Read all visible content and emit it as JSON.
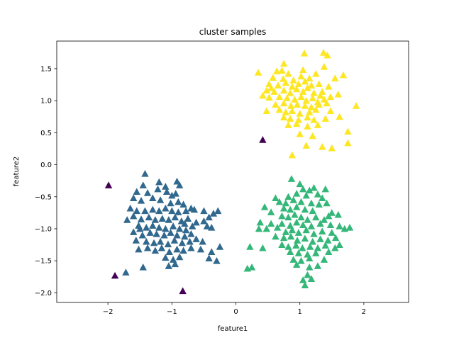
{
  "chart_data": {
    "type": "scatter",
    "title": "cluster samples",
    "xlabel": "feature1",
    "ylabel": "feature2",
    "xlim": [
      -2.8,
      2.7
    ],
    "ylim": [
      -2.15,
      1.93
    ],
    "xticks": [
      -2,
      -1,
      0,
      1,
      2
    ],
    "yticks": [
      -2.0,
      -1.5,
      -1.0,
      -0.5,
      0.0,
      0.5,
      1.0,
      1.5
    ],
    "xtick_labels": [
      "−2",
      "−1",
      "0",
      "1",
      "2"
    ],
    "ytick_labels": [
      "−2.0",
      "−1.5",
      "−1.0",
      "−0.5",
      "0.0",
      "0.5",
      "1.0",
      "1.5"
    ],
    "grid": false,
    "marker": "triangle-up",
    "series": [
      {
        "color": "#440154",
        "points": [
          [
            -1.99,
            -0.32
          ],
          [
            -1.89,
            -1.73
          ],
          [
            -0.83,
            -1.97
          ],
          [
            0.42,
            0.39
          ]
        ]
      },
      {
        "color": "#31688e",
        "points": [
          [
            -1.42,
            -0.14
          ],
          [
            -1.2,
            -0.27
          ],
          [
            -1.1,
            -0.34
          ],
          [
            -0.92,
            -0.26
          ],
          [
            -0.88,
            -0.32
          ],
          [
            -1.45,
            -0.32
          ],
          [
            -1.55,
            -0.42
          ],
          [
            -1.38,
            -0.44
          ],
          [
            -1.22,
            -0.38
          ],
          [
            -1.08,
            -0.42
          ],
          [
            -1.0,
            -0.48
          ],
          [
            -0.94,
            -0.45
          ],
          [
            -1.6,
            -0.52
          ],
          [
            -1.48,
            -0.56
          ],
          [
            -1.3,
            -0.52
          ],
          [
            -1.18,
            -0.55
          ],
          [
            -1.02,
            -0.6
          ],
          [
            -0.9,
            -0.58
          ],
          [
            -0.82,
            -0.62
          ],
          [
            -0.7,
            -0.68
          ],
          [
            -1.65,
            -0.68
          ],
          [
            -1.55,
            -0.72
          ],
          [
            -1.42,
            -0.72
          ],
          [
            -1.3,
            -0.7
          ],
          [
            -1.2,
            -0.72
          ],
          [
            -1.1,
            -0.68
          ],
          [
            -1.0,
            -0.72
          ],
          [
            -0.9,
            -0.74
          ],
          [
            -0.78,
            -0.72
          ],
          [
            -0.65,
            -0.7
          ],
          [
            -0.5,
            -0.72
          ],
          [
            -0.42,
            -0.82
          ],
          [
            -0.35,
            -0.76
          ],
          [
            -0.28,
            -0.72
          ],
          [
            -1.7,
            -0.86
          ],
          [
            -1.6,
            -0.8
          ],
          [
            -1.48,
            -0.85
          ],
          [
            -1.36,
            -0.82
          ],
          [
            -1.26,
            -0.86
          ],
          [
            -1.15,
            -0.84
          ],
          [
            -1.05,
            -0.86
          ],
          [
            -0.95,
            -0.82
          ],
          [
            -0.85,
            -0.88
          ],
          [
            -0.75,
            -0.84
          ],
          [
            -0.62,
            -0.9
          ],
          [
            -0.5,
            -0.88
          ],
          [
            -1.52,
            -0.95
          ],
          [
            -1.4,
            -0.98
          ],
          [
            -1.3,
            -0.95
          ],
          [
            -1.2,
            -0.98
          ],
          [
            -1.1,
            -1.0
          ],
          [
            -0.98,
            -0.96
          ],
          [
            -0.88,
            -1.0
          ],
          [
            -0.78,
            -1.02
          ],
          [
            -0.68,
            -0.96
          ],
          [
            -0.45,
            -0.96
          ],
          [
            -0.38,
            -0.98
          ],
          [
            -1.6,
            -1.05
          ],
          [
            -1.46,
            -1.1
          ],
          [
            -1.34,
            -1.06
          ],
          [
            -1.24,
            -1.08
          ],
          [
            -1.12,
            -1.1
          ],
          [
            -1.02,
            -1.06
          ],
          [
            -0.92,
            -1.1
          ],
          [
            -0.8,
            -1.12
          ],
          [
            -0.7,
            -1.08
          ],
          [
            -1.56,
            -1.18
          ],
          [
            -1.4,
            -1.2
          ],
          [
            -1.28,
            -1.22
          ],
          [
            -1.18,
            -1.2
          ],
          [
            -1.06,
            -1.24
          ],
          [
            -0.96,
            -1.18
          ],
          [
            -0.84,
            -1.22
          ],
          [
            -0.72,
            -1.2
          ],
          [
            -0.62,
            -1.16
          ],
          [
            -0.52,
            -1.2
          ],
          [
            -1.52,
            -1.32
          ],
          [
            -1.38,
            -1.3
          ],
          [
            -1.26,
            -1.34
          ],
          [
            -1.16,
            -1.3
          ],
          [
            -1.04,
            -1.36
          ],
          [
            -0.92,
            -1.32
          ],
          [
            -0.82,
            -1.34
          ],
          [
            -0.7,
            -1.3
          ],
          [
            -0.55,
            -1.32
          ],
          [
            -0.25,
            -1.28
          ],
          [
            -0.38,
            -1.36
          ],
          [
            -1.1,
            -1.45
          ],
          [
            -0.98,
            -1.48
          ],
          [
            -0.88,
            -1.44
          ],
          [
            -0.42,
            -1.46
          ],
          [
            -1.05,
            -1.58
          ],
          [
            -0.95,
            -1.55
          ],
          [
            -0.3,
            -1.5
          ],
          [
            -1.45,
            -1.6
          ],
          [
            -1.72,
            -1.68
          ],
          [
            -1.5,
            -1.0
          ],
          [
            -0.8,
            -0.92
          ]
        ]
      },
      {
        "color": "#35b779",
        "points": [
          [
            0.87,
            -0.22
          ],
          [
            1.0,
            -0.3
          ],
          [
            1.05,
            -0.38
          ],
          [
            1.15,
            -0.4
          ],
          [
            1.22,
            -0.36
          ],
          [
            1.4,
            -0.38
          ],
          [
            0.95,
            -0.45
          ],
          [
            0.82,
            -0.5
          ],
          [
            1.1,
            -0.48
          ],
          [
            1.28,
            -0.46
          ],
          [
            1.35,
            -0.52
          ],
          [
            0.62,
            -0.52
          ],
          [
            0.68,
            -0.58
          ],
          [
            0.78,
            -0.6
          ],
          [
            0.9,
            -0.55
          ],
          [
            1.02,
            -0.58
          ],
          [
            1.18,
            -0.6
          ],
          [
            1.3,
            -0.62
          ],
          [
            1.42,
            -0.6
          ],
          [
            0.45,
            -0.66
          ],
          [
            0.75,
            -0.68
          ],
          [
            0.85,
            -0.7
          ],
          [
            0.95,
            -0.66
          ],
          [
            1.08,
            -0.7
          ],
          [
            1.2,
            -0.72
          ],
          [
            1.5,
            -0.75
          ],
          [
            1.6,
            -0.78
          ],
          [
            0.72,
            -0.8
          ],
          [
            0.82,
            -0.82
          ],
          [
            0.92,
            -0.78
          ],
          [
            1.02,
            -0.82
          ],
          [
            1.12,
            -0.86
          ],
          [
            1.25,
            -0.82
          ],
          [
            1.38,
            -0.86
          ],
          [
            1.45,
            -0.8
          ],
          [
            0.38,
            -0.9
          ],
          [
            0.55,
            -0.92
          ],
          [
            0.72,
            -0.92
          ],
          [
            0.85,
            -0.95
          ],
          [
            0.95,
            -0.9
          ],
          [
            1.05,
            -0.94
          ],
          [
            1.18,
            -0.96
          ],
          [
            1.32,
            -0.92
          ],
          [
            1.48,
            -0.94
          ],
          [
            1.62,
            -0.96
          ],
          [
            0.36,
            -1.0
          ],
          [
            0.48,
            -1.0
          ],
          [
            0.78,
            -1.05
          ],
          [
            0.88,
            -1.02
          ],
          [
            0.98,
            -1.06
          ],
          [
            1.1,
            -1.02
          ],
          [
            1.22,
            -1.08
          ],
          [
            1.35,
            -1.04
          ],
          [
            1.5,
            -1.06
          ],
          [
            1.7,
            -1.0
          ],
          [
            1.78,
            -0.98
          ],
          [
            0.62,
            -1.12
          ],
          [
            0.75,
            -1.14
          ],
          [
            0.86,
            -1.12
          ],
          [
            0.96,
            -1.18
          ],
          [
            1.08,
            -1.15
          ],
          [
            1.2,
            -1.2
          ],
          [
            1.32,
            -1.16
          ],
          [
            1.44,
            -1.18
          ],
          [
            1.56,
            -1.14
          ],
          [
            0.72,
            -1.25
          ],
          [
            0.82,
            -1.28
          ],
          [
            0.94,
            -1.26
          ],
          [
            1.04,
            -1.3
          ],
          [
            1.16,
            -1.28
          ],
          [
            1.28,
            -1.3
          ],
          [
            1.4,
            -1.26
          ],
          [
            1.55,
            -1.3
          ],
          [
            1.62,
            -1.25
          ],
          [
            0.22,
            -1.28
          ],
          [
            0.42,
            -1.3
          ],
          [
            0.85,
            -1.36
          ],
          [
            0.98,
            -1.38
          ],
          [
            1.12,
            -1.4
          ],
          [
            1.25,
            -1.38
          ],
          [
            1.45,
            -1.36
          ],
          [
            0.9,
            -1.48
          ],
          [
            1.02,
            -1.5
          ],
          [
            1.15,
            -1.46
          ],
          [
            1.38,
            -1.48
          ],
          [
            0.95,
            -1.56
          ],
          [
            1.15,
            -1.6
          ],
          [
            1.28,
            -1.58
          ],
          [
            1.12,
            -1.72
          ],
          [
            1.05,
            -1.8
          ],
          [
            1.18,
            -1.78
          ],
          [
            1.08,
            -1.88
          ],
          [
            0.25,
            -1.6
          ],
          [
            0.18,
            -1.62
          ],
          [
            0.55,
            -0.74
          ],
          [
            0.65,
            -0.98
          ]
        ]
      },
      {
        "color": "#fde725",
        "points": [
          [
            1.07,
            1.74
          ],
          [
            1.37,
            1.75
          ],
          [
            1.43,
            1.71
          ],
          [
            0.75,
            1.58
          ],
          [
            1.38,
            1.53
          ],
          [
            0.35,
            1.44
          ],
          [
            0.64,
            1.46
          ],
          [
            0.72,
            1.47
          ],
          [
            0.82,
            1.42
          ],
          [
            1.05,
            1.48
          ],
          [
            1.25,
            1.42
          ],
          [
            1.68,
            1.4
          ],
          [
            0.58,
            1.36
          ],
          [
            0.74,
            1.34
          ],
          [
            0.9,
            1.32
          ],
          [
            1.02,
            1.38
          ],
          [
            1.15,
            1.35
          ],
          [
            1.55,
            1.35
          ],
          [
            0.52,
            1.26
          ],
          [
            0.66,
            1.24
          ],
          [
            0.78,
            1.28
          ],
          [
            0.88,
            1.22
          ],
          [
            0.98,
            1.26
          ],
          [
            1.08,
            1.3
          ],
          [
            1.18,
            1.24
          ],
          [
            1.3,
            1.26
          ],
          [
            1.45,
            1.22
          ],
          [
            0.48,
            1.16
          ],
          [
            0.6,
            1.14
          ],
          [
            0.75,
            1.16
          ],
          [
            0.85,
            1.12
          ],
          [
            0.95,
            1.18
          ],
          [
            1.05,
            1.14
          ],
          [
            1.12,
            1.2
          ],
          [
            1.22,
            1.12
          ],
          [
            1.35,
            1.14
          ],
          [
            1.6,
            1.1
          ],
          [
            0.52,
            1.05
          ],
          [
            0.68,
            1.06
          ],
          [
            0.8,
            1.04
          ],
          [
            0.92,
            1.02
          ],
          [
            1.02,
            1.06
          ],
          [
            1.1,
            1.0
          ],
          [
            1.2,
            1.04
          ],
          [
            1.28,
            0.98
          ],
          [
            1.38,
            1.02
          ],
          [
            1.48,
            1.06
          ],
          [
            0.62,
            0.94
          ],
          [
            0.75,
            0.96
          ],
          [
            0.86,
            0.92
          ],
          [
            0.96,
            0.94
          ],
          [
            1.08,
            0.92
          ],
          [
            1.18,
            0.9
          ],
          [
            1.3,
            0.94
          ],
          [
            1.42,
            0.96
          ],
          [
            1.88,
            0.92
          ],
          [
            0.48,
            0.84
          ],
          [
            0.68,
            0.86
          ],
          [
            0.78,
            0.82
          ],
          [
            0.88,
            0.84
          ],
          [
            1.0,
            0.8
          ],
          [
            1.15,
            0.82
          ],
          [
            1.25,
            0.86
          ],
          [
            1.48,
            0.84
          ],
          [
            0.75,
            0.74
          ],
          [
            0.85,
            0.72
          ],
          [
            0.98,
            0.7
          ],
          [
            1.12,
            0.74
          ],
          [
            1.22,
            0.7
          ],
          [
            1.4,
            0.72
          ],
          [
            1.62,
            0.75
          ],
          [
            0.82,
            0.62
          ],
          [
            0.95,
            0.64
          ],
          [
            1.12,
            0.6
          ],
          [
            1.28,
            0.62
          ],
          [
            1.75,
            0.52
          ],
          [
            1.0,
            0.48
          ],
          [
            1.2,
            0.45
          ],
          [
            1.1,
            0.3
          ],
          [
            1.35,
            0.28
          ],
          [
            1.5,
            0.26
          ],
          [
            1.75,
            0.34
          ],
          [
            0.88,
            0.15
          ],
          [
            0.42,
            1.08
          ],
          [
            1.32,
            1.08
          ],
          [
            0.55,
            1.2
          ]
        ]
      }
    ]
  }
}
